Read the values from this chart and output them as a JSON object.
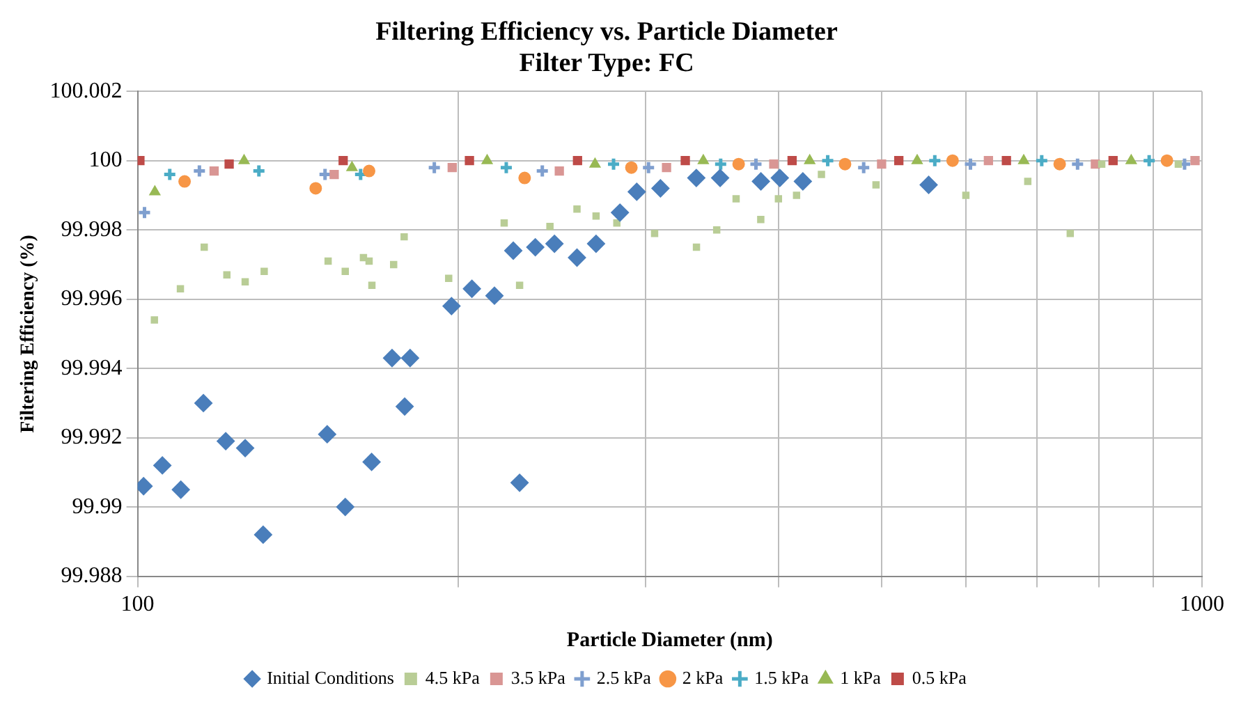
{
  "chart_data": {
    "type": "scatter",
    "title": "Filtering Efficiency vs. Particle Diameter",
    "subtitle": "Filter Type: FC",
    "xlabel": "Particle Diameter (nm)",
    "ylabel": "Filtering Efficiency (%)",
    "log": "x",
    "grid": true,
    "legend": "bottom",
    "xlim": [
      100,
      1000
    ],
    "xticks": [
      100,
      {
        "value": 200,
        "label": null
      },
      {
        "value": 300,
        "label": null
      },
      {
        "value": 400,
        "label": null
      },
      {
        "value": 500,
        "label": null
      },
      {
        "value": 600,
        "label": null
      },
      {
        "value": 700,
        "label": null
      },
      {
        "value": 800,
        "label": null
      },
      {
        "value": 900,
        "label": null
      },
      1000
    ],
    "ylim": [
      99.988,
      100.002
    ],
    "yticks": [
      99.988,
      99.99,
      99.992,
      99.994,
      99.996,
      99.998,
      100,
      100.002
    ],
    "series": [
      {
        "name": "Initial Conditions",
        "color": "#4a7ebb",
        "marker": "diamond",
        "x": [
          101.3,
          105.5,
          109.8,
          115.3,
          121,
          126.2,
          131.2,
          150.7,
          156.7,
          165.9,
          173.4,
          178.2,
          180.3,
          197.2,
          206.1,
          216.4,
          228.5,
          225.4,
          236.4,
          246.4,
          258.7,
          269.6,
          283.9,
          294.4,
          309.9,
          334.9,
          352.6,
          385.1,
          401.2,
          421.7,
          553.6
        ],
        "values": [
          99.9906,
          99.9912,
          99.9905,
          99.993,
          99.9919,
          99.9917,
          99.9892,
          99.9921,
          99.99,
          99.9913,
          99.9943,
          99.9929,
          99.9943,
          99.9958,
          99.9963,
          99.9961,
          99.9907,
          99.9974,
          99.9975,
          99.9976,
          99.9972,
          99.9976,
          99.9985,
          99.9991,
          99.9992,
          99.9995,
          99.9995,
          99.9994,
          99.9995,
          99.9994,
          99.9993
        ]
      },
      {
        "name": "0.5 kPa",
        "color": "#be4b48",
        "marker": "square",
        "x": [
          100.5,
          121.9,
          156,
          205,
          259,
          327,
          412,
          519,
          655,
          825
        ],
        "values": [
          100,
          99.9999,
          100,
          100,
          100,
          100,
          100,
          100,
          100,
          100
        ]
      },
      {
        "name": "1 kPa",
        "color": "#98b954",
        "marker": "triangle",
        "x": [
          103.8,
          125.9,
          159,
          213,
          269,
          340,
          428,
          540,
          680,
          858
        ],
        "values": [
          99.9991,
          100,
          99.9998,
          100,
          99.9999,
          100,
          100,
          100,
          100,
          100
        ]
      },
      {
        "name": "1.5 kPa",
        "color": "#4bacc6",
        "marker": "cross",
        "x": [
          107.2,
          130,
          162,
          222,
          280,
          353,
          445,
          561,
          707,
          892
        ],
        "values": [
          99.9996,
          99.9997,
          99.9996,
          99.9998,
          99.9999,
          99.9999,
          100,
          100,
          100,
          100
        ]
      },
      {
        "name": "2 kPa",
        "color": "#f79646",
        "marker": "circle",
        "x": [
          110.7,
          147,
          165,
          231,
          291,
          367,
          462,
          583,
          735,
          927
        ],
        "values": [
          99.9994,
          99.9992,
          99.9997,
          99.9995,
          99.9998,
          99.9999,
          99.9999,
          100,
          99.9999,
          100
        ]
      },
      {
        "name": "2.5 kPa",
        "color": "#7f9fcf",
        "marker": "cross",
        "x": [
          101.5,
          114.3,
          150,
          190,
          240,
          302,
          381,
          481,
          606,
          764,
          963
        ],
        "values": [
          99.9985,
          99.9997,
          99.9996,
          99.9998,
          99.9997,
          99.9998,
          99.9999,
          99.9998,
          99.9999,
          99.9999,
          99.9999
        ]
      },
      {
        "name": "3.5 kPa",
        "color": "#d99694",
        "marker": "square",
        "x": [
          118,
          153,
          197.5,
          249,
          314,
          396,
          500,
          630,
          794,
          985
        ],
        "values": [
          99.9997,
          99.9996,
          99.9998,
          99.9997,
          99.9998,
          99.9999,
          99.9999,
          100,
          99.9999,
          100
        ]
      },
      {
        "name": "4.5 kPa",
        "color": "#b9cd96",
        "marker": "square",
        "x": [
          103.7,
          109.7,
          115.5,
          121.3,
          126.2,
          131.5,
          151,
          156.7,
          163,
          165,
          166,
          174,
          178,
          196,
          221,
          228.5,
          244,
          258.7,
          269.6,
          282,
          306,
          335,
          350,
          365,
          385,
          400,
          416,
          439,
          494,
          600,
          686,
          752,
          805,
          950
        ],
        "values": [
          99.9954,
          99.9963,
          99.9975,
          99.9967,
          99.9965,
          99.9968,
          99.9971,
          99.9968,
          99.9972,
          99.9971,
          99.9964,
          99.997,
          99.9978,
          99.9966,
          99.9982,
          99.9964,
          99.9981,
          99.9986,
          99.9984,
          99.9982,
          99.9979,
          99.9975,
          99.998,
          99.9989,
          99.9983,
          99.9989,
          99.999,
          99.9996,
          99.9993,
          99.999,
          99.9994,
          99.9979,
          99.9999,
          99.9999
        ]
      }
    ]
  }
}
